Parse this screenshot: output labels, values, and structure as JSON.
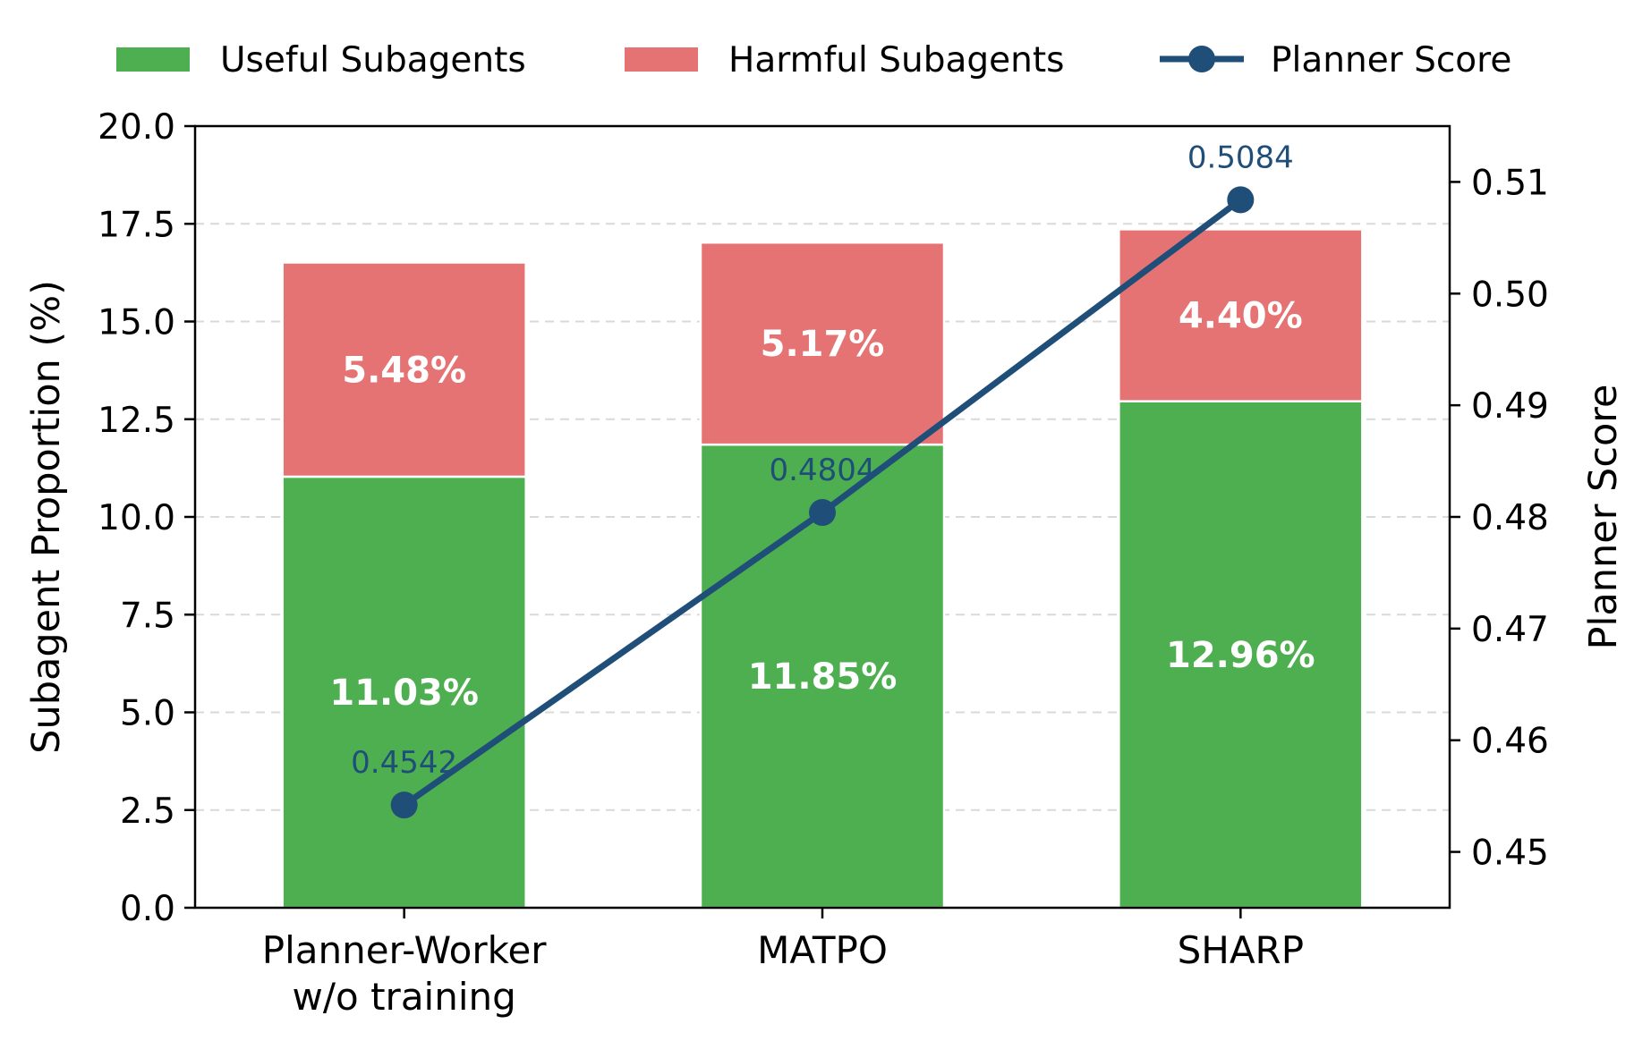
{
  "chart_data": {
    "type": "bar",
    "stacked": true,
    "categories": [
      "Planner-Worker\nw/o training",
      "MATPO",
      "SHARP"
    ],
    "series": [
      {
        "name": "Useful Subagents",
        "values": [
          11.03,
          11.85,
          12.96
        ],
        "labels": [
          "11.03%",
          "11.85%",
          "12.96%"
        ],
        "color": "#4daf4f"
      },
      {
        "name": "Harmful Subagents",
        "values": [
          5.48,
          5.17,
          4.4
        ],
        "labels": [
          "5.48%",
          "5.17%",
          "4.40%"
        ],
        "color": "#e57373"
      }
    ],
    "line_series": {
      "name": "Planner Score",
      "axis": "right",
      "values": [
        0.4542,
        0.4804,
        0.5084
      ],
      "labels": [
        "0.4542",
        "0.4804",
        "0.5084"
      ],
      "color": "#1f4e79"
    },
    "ylabel": "Subagent Proportion (%)",
    "ylabel_right": "Planner Score",
    "ylim": [
      0,
      20
    ],
    "yticks": [
      0.0,
      2.5,
      5.0,
      7.5,
      10.0,
      12.5,
      15.0,
      17.5,
      20.0
    ],
    "ytick_labels": [
      "0.0",
      "2.5",
      "5.0",
      "7.5",
      "10.0",
      "12.5",
      "15.0",
      "17.5",
      "20.0"
    ],
    "ylim_right": [
      0.445,
      0.515
    ],
    "yticks_right": [
      0.45,
      0.46,
      0.47,
      0.48,
      0.49,
      0.5,
      0.51
    ],
    "ytick_labels_right": [
      "0.45",
      "0.46",
      "0.47",
      "0.48",
      "0.49",
      "0.50",
      "0.51"
    ],
    "grid": "horizontal dashed",
    "legend_position": "top"
  }
}
